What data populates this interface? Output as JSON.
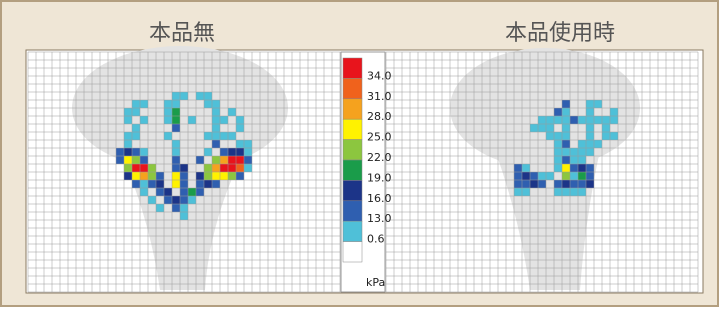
{
  "chart_data": {
    "type": "heatmap",
    "panels": [
      {
        "title": "本品無",
        "cells": [
          [
            18,
            5,
            8
          ],
          [
            19,
            5,
            8
          ],
          [
            21,
            5,
            8
          ],
          [
            22,
            5,
            8
          ],
          [
            13,
            6,
            8
          ],
          [
            14,
            6,
            8
          ],
          [
            17,
            6,
            8
          ],
          [
            18,
            6,
            8
          ],
          [
            22,
            6,
            8
          ],
          [
            23,
            6,
            8
          ],
          [
            12,
            7,
            8
          ],
          [
            13,
            7,
            8
          ],
          [
            17,
            7,
            8
          ],
          [
            18,
            7,
            20
          ],
          [
            23,
            7,
            8
          ],
          [
            25,
            7,
            8
          ],
          [
            12,
            8,
            8
          ],
          [
            14,
            8,
            8
          ],
          [
            17,
            8,
            8
          ],
          [
            18,
            8,
            20
          ],
          [
            20,
            8,
            8
          ],
          [
            23,
            8,
            8
          ],
          [
            24,
            8,
            8
          ],
          [
            26,
            8,
            8
          ],
          [
            13,
            9,
            8
          ],
          [
            18,
            9,
            14
          ],
          [
            23,
            9,
            8
          ],
          [
            26,
            9,
            8
          ],
          [
            12,
            10,
            8
          ],
          [
            13,
            10,
            8
          ],
          [
            17,
            10,
            8
          ],
          [
            22,
            10,
            8
          ],
          [
            23,
            10,
            8
          ],
          [
            24,
            10,
            8
          ],
          [
            25,
            10,
            8
          ],
          [
            12,
            11,
            8
          ],
          [
            18,
            11,
            8
          ],
          [
            23,
            11,
            14
          ],
          [
            26,
            11,
            8
          ],
          [
            27,
            11,
            8
          ],
          [
            11,
            12,
            14
          ],
          [
            12,
            12,
            17
          ],
          [
            13,
            12,
            14
          ],
          [
            14,
            12,
            8
          ],
          [
            18,
            12,
            8
          ],
          [
            22,
            12,
            8
          ],
          [
            24,
            12,
            14
          ],
          [
            25,
            12,
            17
          ],
          [
            26,
            12,
            17
          ],
          [
            27,
            12,
            8
          ],
          [
            11,
            13,
            14
          ],
          [
            12,
            13,
            26
          ],
          [
            13,
            13,
            23
          ],
          [
            14,
            13,
            14
          ],
          [
            18,
            13,
            14
          ],
          [
            21,
            13,
            14
          ],
          [
            23,
            13,
            23
          ],
          [
            24,
            13,
            29
          ],
          [
            25,
            13,
            34
          ],
          [
            26,
            13,
            34
          ],
          [
            27,
            13,
            14
          ],
          [
            12,
            14,
            23
          ],
          [
            13,
            14,
            34
          ],
          [
            14,
            14,
            34
          ],
          [
            15,
            14,
            23
          ],
          [
            18,
            14,
            14
          ],
          [
            19,
            14,
            17
          ],
          [
            22,
            14,
            23
          ],
          [
            23,
            14,
            29
          ],
          [
            24,
            14,
            34
          ],
          [
            25,
            14,
            35
          ],
          [
            26,
            14,
            32
          ],
          [
            27,
            14,
            8
          ],
          [
            12,
            15,
            17
          ],
          [
            13,
            15,
            26
          ],
          [
            14,
            15,
            29
          ],
          [
            15,
            15,
            23
          ],
          [
            16,
            15,
            14
          ],
          [
            18,
            15,
            26
          ],
          [
            19,
            15,
            14
          ],
          [
            21,
            15,
            17
          ],
          [
            22,
            15,
            23
          ],
          [
            23,
            15,
            26
          ],
          [
            24,
            15,
            26
          ],
          [
            25,
            15,
            23
          ],
          [
            26,
            15,
            14
          ],
          [
            13,
            16,
            14
          ],
          [
            14,
            16,
            8
          ],
          [
            15,
            16,
            14
          ],
          [
            16,
            16,
            17
          ],
          [
            18,
            16,
            26
          ],
          [
            19,
            16,
            14
          ],
          [
            21,
            16,
            14
          ],
          [
            22,
            16,
            17
          ],
          [
            23,
            16,
            14
          ],
          [
            14,
            17,
            8
          ],
          [
            16,
            17,
            14
          ],
          [
            17,
            17,
            17
          ],
          [
            19,
            17,
            14
          ],
          [
            20,
            17,
            20
          ],
          [
            21,
            17,
            14
          ],
          [
            15,
            18,
            8
          ],
          [
            17,
            18,
            14
          ],
          [
            18,
            18,
            17
          ],
          [
            19,
            18,
            14
          ],
          [
            20,
            18,
            8
          ],
          [
            16,
            19,
            8
          ],
          [
            18,
            19,
            14
          ],
          [
            19,
            19,
            8
          ],
          [
            19,
            20,
            8
          ]
        ]
      },
      {
        "title": "本品使用時",
        "cells": [
          [
            22,
            6,
            14
          ],
          [
            25,
            6,
            8
          ],
          [
            26,
            6,
            8
          ],
          [
            21,
            7,
            14
          ],
          [
            22,
            7,
            8
          ],
          [
            25,
            7,
            8
          ],
          [
            28,
            7,
            8
          ],
          [
            19,
            8,
            8
          ],
          [
            20,
            8,
            8
          ],
          [
            21,
            8,
            8
          ],
          [
            22,
            8,
            8
          ],
          [
            23,
            8,
            14
          ],
          [
            24,
            8,
            8
          ],
          [
            25,
            8,
            8
          ],
          [
            26,
            8,
            8
          ],
          [
            27,
            8,
            8
          ],
          [
            28,
            8,
            8
          ],
          [
            18,
            9,
            8
          ],
          [
            19,
            9,
            8
          ],
          [
            20,
            9,
            8
          ],
          [
            22,
            9,
            8
          ],
          [
            25,
            9,
            8
          ],
          [
            27,
            9,
            8
          ],
          [
            20,
            10,
            8
          ],
          [
            21,
            10,
            8
          ],
          [
            22,
            10,
            8
          ],
          [
            25,
            10,
            8
          ],
          [
            27,
            10,
            8
          ],
          [
            28,
            10,
            8
          ],
          [
            21,
            11,
            8
          ],
          [
            22,
            11,
            14
          ],
          [
            24,
            11,
            8
          ],
          [
            25,
            11,
            8
          ],
          [
            26,
            11,
            8
          ],
          [
            21,
            12,
            8
          ],
          [
            22,
            12,
            8
          ],
          [
            23,
            12,
            8
          ],
          [
            24,
            12,
            8
          ],
          [
            25,
            12,
            8
          ],
          [
            21,
            13,
            8
          ],
          [
            22,
            13,
            14
          ],
          [
            23,
            13,
            8
          ],
          [
            24,
            13,
            8
          ],
          [
            16,
            14,
            14
          ],
          [
            17,
            14,
            8
          ],
          [
            21,
            14,
            8
          ],
          [
            22,
            14,
            26
          ],
          [
            23,
            14,
            14
          ],
          [
            24,
            14,
            17
          ],
          [
            25,
            14,
            14
          ],
          [
            16,
            15,
            14
          ],
          [
            17,
            15,
            17
          ],
          [
            18,
            15,
            14
          ],
          [
            19,
            15,
            8
          ],
          [
            20,
            15,
            8
          ],
          [
            22,
            15,
            23
          ],
          [
            23,
            15,
            8
          ],
          [
            24,
            15,
            20
          ],
          [
            25,
            15,
            14
          ],
          [
            16,
            16,
            14
          ],
          [
            17,
            16,
            14
          ],
          [
            18,
            16,
            17
          ],
          [
            19,
            16,
            14
          ],
          [
            21,
            16,
            14
          ],
          [
            22,
            16,
            17
          ],
          [
            23,
            16,
            14
          ],
          [
            24,
            16,
            14
          ],
          [
            25,
            16,
            17
          ],
          [
            16,
            17,
            8
          ],
          [
            17,
            17,
            8
          ],
          [
            21,
            17,
            8
          ],
          [
            22,
            17,
            8
          ],
          [
            23,
            17,
            8
          ],
          [
            24,
            17,
            8
          ]
        ]
      }
    ],
    "legend": {
      "colors": [
        "#e8141c",
        "#f0621c",
        "#f5a21e",
        "#fff200",
        "#8cc63f",
        "#1a9c4a",
        "#1c3488",
        "#2f5fb0",
        "#4fc0d8",
        "#ffffff"
      ],
      "levels": [
        {
          "value": 34,
          "label": "34.0"
        },
        {
          "value": 31,
          "label": "31.0"
        },
        {
          "value": 28,
          "label": "28.0"
        },
        {
          "value": 25,
          "label": "25.0"
        },
        {
          "value": 22,
          "label": "22.0"
        },
        {
          "value": 19,
          "label": "19.0"
        },
        {
          "value": 16,
          "label": "16.0"
        },
        {
          "value": 13,
          "label": "13.0"
        },
        {
          "value": 0.6,
          "label": "0.6"
        }
      ],
      "unit": "kPa"
    }
  }
}
